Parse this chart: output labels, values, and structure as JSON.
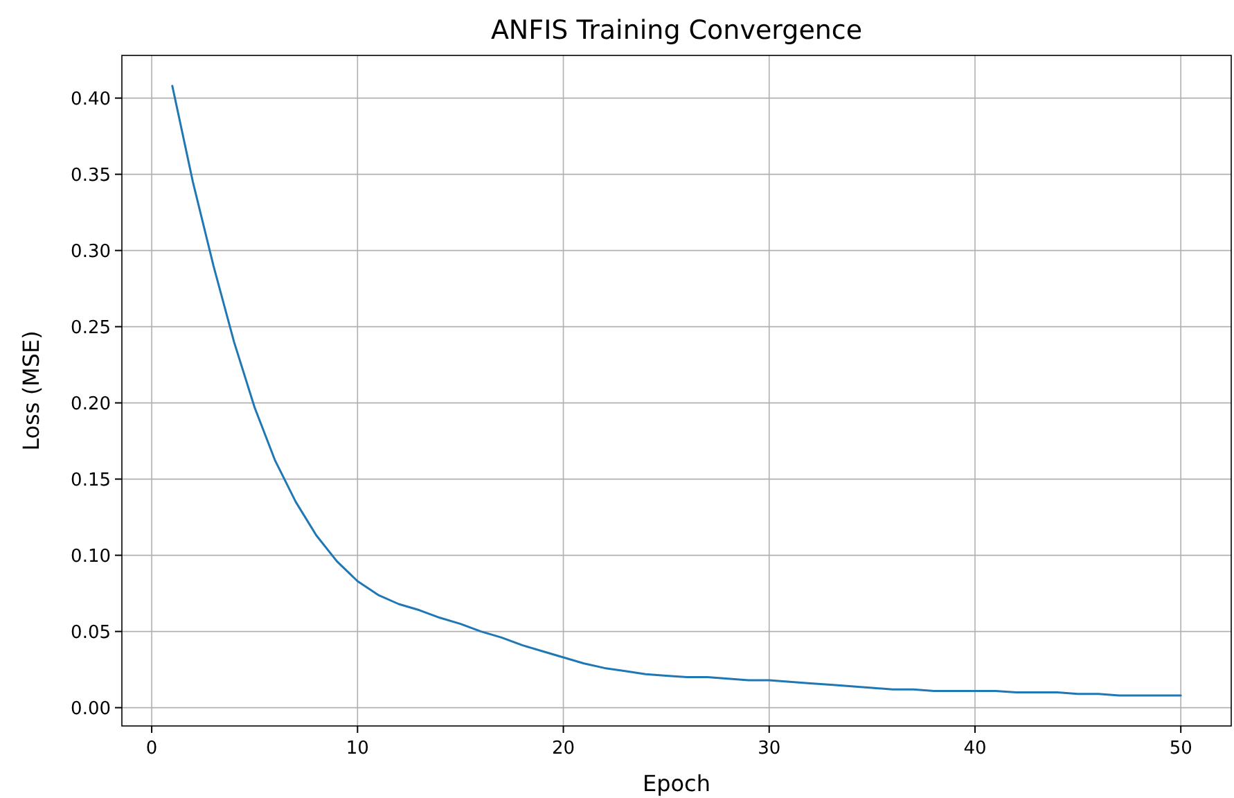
{
  "chart_data": {
    "type": "line",
    "title": "ANFIS Training Convergence",
    "xlabel": "Epoch",
    "ylabel": "Loss (MSE)",
    "x": [
      1,
      2,
      3,
      4,
      5,
      6,
      7,
      8,
      9,
      10,
      11,
      12,
      13,
      14,
      15,
      16,
      17,
      18,
      19,
      20,
      21,
      22,
      23,
      24,
      25,
      26,
      27,
      28,
      29,
      30,
      31,
      32,
      33,
      34,
      35,
      36,
      37,
      38,
      39,
      40,
      41,
      42,
      43,
      44,
      45,
      46,
      47,
      48,
      49,
      50
    ],
    "series": [
      {
        "color": "#1f77b4",
        "values": [
          0.408,
          0.345,
          0.29,
          0.24,
          0.197,
          0.162,
          0.135,
          0.113,
          0.096,
          0.083,
          0.074,
          0.068,
          0.064,
          0.059,
          0.055,
          0.05,
          0.046,
          0.041,
          0.037,
          0.033,
          0.029,
          0.026,
          0.024,
          0.022,
          0.021,
          0.02,
          0.02,
          0.019,
          0.018,
          0.018,
          0.017,
          0.016,
          0.015,
          0.014,
          0.013,
          0.012,
          0.012,
          0.011,
          0.011,
          0.011,
          0.011,
          0.01,
          0.01,
          0.01,
          0.009,
          0.009,
          0.008,
          0.008,
          0.008,
          0.008
        ]
      }
    ],
    "xlim": [
      -1.45,
      52.45
    ],
    "xticks": [
      0,
      10,
      20,
      30,
      40,
      50
    ],
    "ylim": [
      -0.012,
      0.428
    ],
    "yticks": [
      {
        "value": 0,
        "label": "0.00"
      },
      {
        "value": 0.05,
        "label": "0.05"
      },
      {
        "value": 0.1,
        "label": "0.10"
      },
      {
        "value": 0.15,
        "label": "0.15"
      },
      {
        "value": 0.2,
        "label": "0.20"
      },
      {
        "value": 0.25,
        "label": "0.25"
      },
      {
        "value": 0.3,
        "label": "0.30"
      },
      {
        "value": 0.35,
        "label": "0.35"
      },
      {
        "value": 0.4,
        "label": "0.40"
      }
    ],
    "grid": true,
    "line_style": "solid"
  }
}
